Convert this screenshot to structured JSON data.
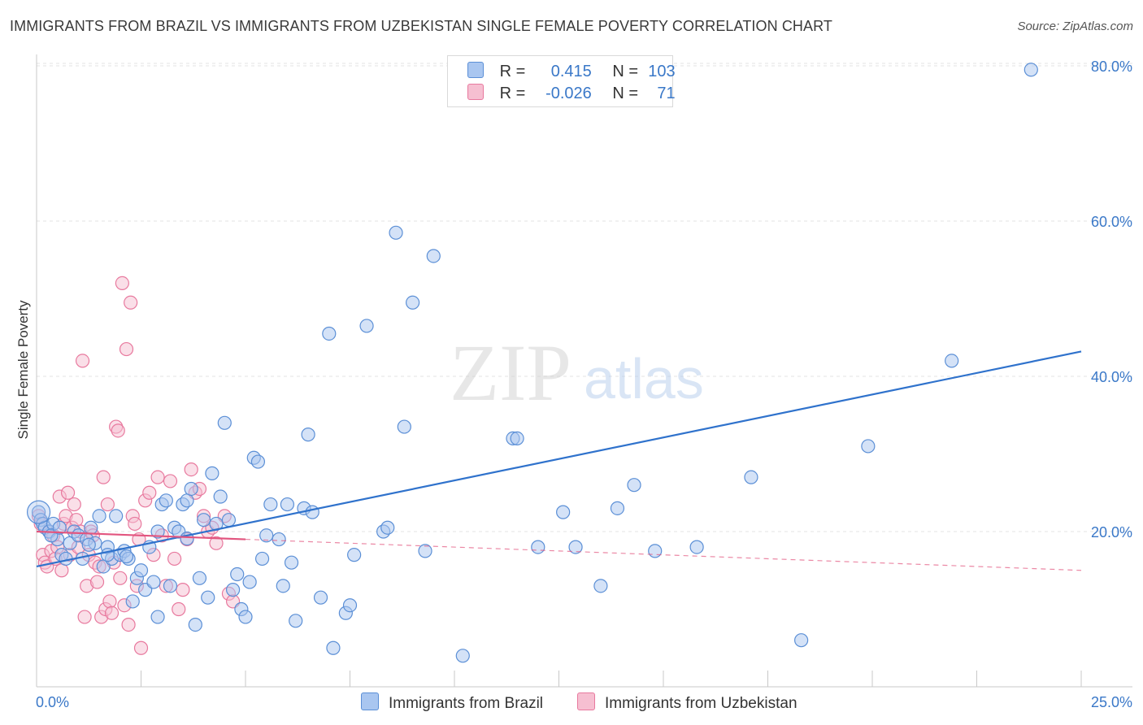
{
  "title": "IMMIGRANTS FROM BRAZIL VS IMMIGRANTS FROM UZBEKISTAN SINGLE FEMALE POVERTY CORRELATION CHART",
  "source": "Source: ZipAtlas.com",
  "watermark": {
    "zip": "ZIP",
    "atlas": "atlas"
  },
  "colors": {
    "brazil_fill": "#a9c6f0",
    "brazil_stroke": "#5b8fd6",
    "brazil_line": "#2f72cc",
    "uzbek_fill": "#f6bfd1",
    "uzbek_stroke": "#e8799e",
    "uzbek_line": "#e2557f",
    "tick_text": "#3a78c8",
    "grid": "#e3e3e3"
  },
  "legend": {
    "r_label": "R =",
    "n_label": "N =",
    "brazil": {
      "r": "0.415",
      "n": "103"
    },
    "uzbek": {
      "r": "-0.026",
      "n": "71"
    }
  },
  "chart_data": {
    "type": "scatter",
    "title": "IMMIGRANTS FROM BRAZIL VS IMMIGRANTS FROM UZBEKISTAN SINGLE FEMALE POVERTY CORRELATION CHART",
    "xlabel": "",
    "ylabel": "Single Female Poverty",
    "xlim": [
      0,
      25
    ],
    "ylim": [
      0,
      82
    ],
    "x_tick_labels": [
      "0.0%",
      "25.0%"
    ],
    "y_ticks": [
      20,
      40,
      60,
      80
    ],
    "y_tick_labels": [
      "20.0%",
      "40.0%",
      "60.0%",
      "80.0%"
    ],
    "grid": true,
    "series": [
      {
        "name": "Immigrants from Brazil",
        "r": 0.415,
        "n": 103,
        "trend": {
          "x": [
            0,
            25
          ],
          "y": [
            15.5,
            43.2
          ],
          "style": "solid"
        },
        "points": [
          [
            0.05,
            22.5
          ],
          [
            0.1,
            21.5
          ],
          [
            0.15,
            21
          ],
          [
            0.2,
            20.5
          ],
          [
            0.3,
            20
          ],
          [
            0.4,
            21
          ],
          [
            0.5,
            19
          ],
          [
            0.6,
            17
          ],
          [
            0.7,
            16.5
          ],
          [
            0.8,
            18.5
          ],
          [
            0.9,
            20
          ],
          [
            1.0,
            19.5
          ],
          [
            1.1,
            16.5
          ],
          [
            1.2,
            19
          ],
          [
            1.3,
            20.5
          ],
          [
            1.4,
            18.5
          ],
          [
            1.5,
            22
          ],
          [
            1.6,
            15.5
          ],
          [
            1.7,
            18
          ],
          [
            1.8,
            16.5
          ],
          [
            1.9,
            22
          ],
          [
            2.0,
            17
          ],
          [
            2.1,
            17.5
          ],
          [
            2.2,
            16.5
          ],
          [
            2.3,
            11
          ],
          [
            2.4,
            14
          ],
          [
            2.5,
            15
          ],
          [
            2.6,
            12.5
          ],
          [
            2.7,
            18
          ],
          [
            2.8,
            13.5
          ],
          [
            2.9,
            9
          ],
          [
            3.0,
            23.5
          ],
          [
            3.1,
            24
          ],
          [
            3.2,
            13
          ],
          [
            3.3,
            20.5
          ],
          [
            3.4,
            20
          ],
          [
            3.5,
            23.5
          ],
          [
            3.6,
            24
          ],
          [
            3.7,
            25.5
          ],
          [
            3.8,
            8
          ],
          [
            3.9,
            14
          ],
          [
            4.0,
            21.5
          ],
          [
            4.1,
            11.5
          ],
          [
            4.2,
            27.5
          ],
          [
            4.3,
            21
          ],
          [
            4.4,
            24.5
          ],
          [
            4.5,
            34
          ],
          [
            4.6,
            21.5
          ],
          [
            4.7,
            12.5
          ],
          [
            4.8,
            14.5
          ],
          [
            4.9,
            10
          ],
          [
            5.0,
            9
          ],
          [
            5.1,
            13.5
          ],
          [
            5.2,
            29.5
          ],
          [
            5.3,
            29
          ],
          [
            5.4,
            16.5
          ],
          [
            5.5,
            19.5
          ],
          [
            5.6,
            23.5
          ],
          [
            5.8,
            19
          ],
          [
            5.9,
            13
          ],
          [
            6.0,
            23.5
          ],
          [
            6.1,
            16
          ],
          [
            6.2,
            8.5
          ],
          [
            6.4,
            23
          ],
          [
            6.5,
            32.5
          ],
          [
            6.6,
            22.5
          ],
          [
            6.8,
            11.5
          ],
          [
            7.0,
            45.5
          ],
          [
            7.1,
            5
          ],
          [
            7.4,
            9.5
          ],
          [
            7.5,
            10.5
          ],
          [
            7.6,
            17
          ],
          [
            7.9,
            46.5
          ],
          [
            8.3,
            20
          ],
          [
            8.4,
            20.5
          ],
          [
            8.6,
            58.5
          ],
          [
            8.8,
            33.5
          ],
          [
            9.0,
            49.5
          ],
          [
            9.3,
            17.5
          ],
          [
            9.5,
            55.5
          ],
          [
            10.2,
            4
          ],
          [
            11.4,
            32
          ],
          [
            11.5,
            32
          ],
          [
            12.0,
            18
          ],
          [
            12.6,
            22.5
          ],
          [
            12.9,
            18
          ],
          [
            13.5,
            13
          ],
          [
            13.9,
            23
          ],
          [
            14.3,
            26
          ],
          [
            14.8,
            17.5
          ],
          [
            15.8,
            18
          ],
          [
            17.1,
            27
          ],
          [
            18.3,
            6
          ],
          [
            19.9,
            31
          ],
          [
            21.9,
            42
          ],
          [
            23.8,
            79.5
          ],
          [
            1.7,
            17
          ],
          [
            2.15,
            16.8
          ],
          [
            0.35,
            19.5
          ],
          [
            0.55,
            20.5
          ],
          [
            2.9,
            20
          ],
          [
            1.25,
            18.3
          ],
          [
            3.6,
            19.1
          ]
        ]
      },
      {
        "name": "Immigrants from Uzbekistan",
        "r": -0.026,
        "n": 71,
        "trend": {
          "x": [
            0,
            25
          ],
          "y": [
            20,
            15
          ],
          "solid_until_x": 5.0
        },
        "points": [
          [
            0.05,
            22
          ],
          [
            0.1,
            21
          ],
          [
            0.15,
            17
          ],
          [
            0.2,
            16
          ],
          [
            0.25,
            15.5
          ],
          [
            0.3,
            20
          ],
          [
            0.35,
            17.5
          ],
          [
            0.4,
            19.5
          ],
          [
            0.45,
            16.5
          ],
          [
            0.5,
            18
          ],
          [
            0.55,
            24.5
          ],
          [
            0.6,
            15
          ],
          [
            0.65,
            21
          ],
          [
            0.7,
            22
          ],
          [
            0.75,
            25
          ],
          [
            0.8,
            17
          ],
          [
            0.85,
            20.5
          ],
          [
            0.9,
            23.5
          ],
          [
            0.95,
            21.5
          ],
          [
            1.0,
            18
          ],
          [
            1.05,
            20
          ],
          [
            1.1,
            42
          ],
          [
            1.15,
            9
          ],
          [
            1.2,
            13
          ],
          [
            1.25,
            17
          ],
          [
            1.3,
            20
          ],
          [
            1.35,
            19.5
          ],
          [
            1.4,
            16
          ],
          [
            1.45,
            13.5
          ],
          [
            1.5,
            15.5
          ],
          [
            1.55,
            9
          ],
          [
            1.6,
            27
          ],
          [
            1.65,
            10
          ],
          [
            1.7,
            23.5
          ],
          [
            1.75,
            11
          ],
          [
            1.8,
            9.5
          ],
          [
            1.85,
            16
          ],
          [
            1.9,
            33.5
          ],
          [
            1.95,
            33
          ],
          [
            2.0,
            14
          ],
          [
            2.05,
            52
          ],
          [
            2.1,
            10.5
          ],
          [
            2.15,
            43.5
          ],
          [
            2.2,
            8
          ],
          [
            2.25,
            49.5
          ],
          [
            2.3,
            22
          ],
          [
            2.35,
            21
          ],
          [
            2.4,
            13
          ],
          [
            2.45,
            19
          ],
          [
            2.5,
            5
          ],
          [
            2.6,
            24
          ],
          [
            2.7,
            25
          ],
          [
            2.8,
            17
          ],
          [
            2.9,
            27
          ],
          [
            3.0,
            19.5
          ],
          [
            3.1,
            13
          ],
          [
            3.2,
            26.5
          ],
          [
            3.3,
            16.5
          ],
          [
            3.4,
            10
          ],
          [
            3.5,
            12.5
          ],
          [
            3.6,
            19
          ],
          [
            3.7,
            28
          ],
          [
            3.8,
            25
          ],
          [
            3.9,
            25.5
          ],
          [
            4.0,
            22
          ],
          [
            4.1,
            20
          ],
          [
            4.2,
            20.5
          ],
          [
            4.3,
            18.5
          ],
          [
            4.5,
            22
          ],
          [
            4.6,
            12
          ],
          [
            4.7,
            11
          ]
        ]
      }
    ]
  },
  "bottom_legend": {
    "brazil": "Immigrants from Brazil",
    "uzbek": "Immigrants from Uzbekistan"
  }
}
